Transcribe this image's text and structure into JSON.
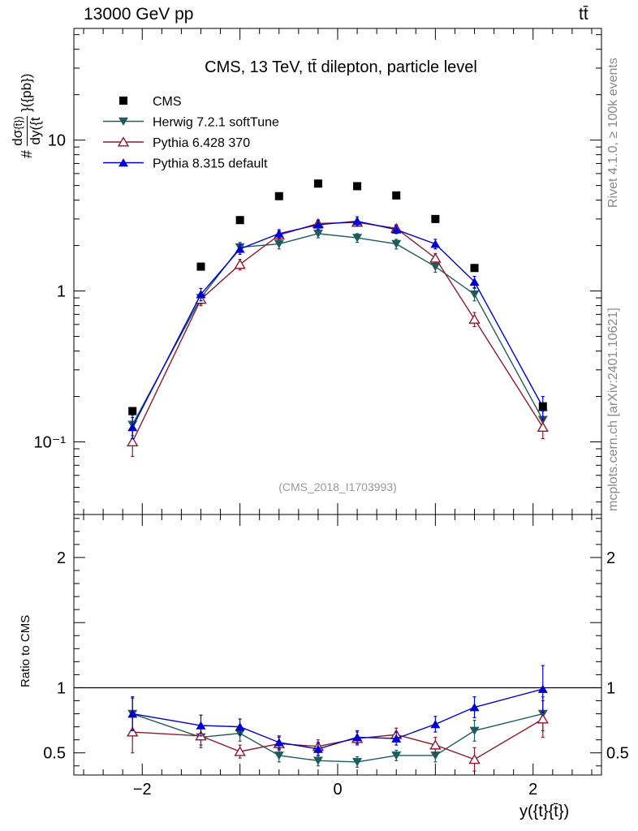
{
  "header": {
    "energy_label": "13000 GeV pp",
    "process_label": "tt̄"
  },
  "side_labels": {
    "rivet": "Rivet 4.1.0, ≥ 100k events",
    "mcplots": "mcplots.cern.ch [arXiv:2401.10621]"
  },
  "axis_labels": {
    "top_y_prefix": "#",
    "top_y_num": "dσ",
    "top_y_num_tail": "{t̄})",
    "top_y_den": "dy({t",
    "top_y_units": "}({pb})",
    "ratio_y": "Ratio to CMS",
    "x": "y({t}{t̄})"
  },
  "colors": {
    "data": "#000000",
    "herwig": "#1e5b5b",
    "pythia6": "#8b1a2e",
    "pythia8": "#0000cc"
  },
  "chart_data": [
    {
      "type": "scatter",
      "title": "CMS, 13 TeV, tt̄ dilepton, particle level",
      "watermark": "(CMS_2018_I1703993)",
      "yscale": "log",
      "ylim": [
        0.033,
        55
      ],
      "xlim": [
        -2.7,
        2.7
      ],
      "y_ticks": [
        {
          "value": 0.1,
          "label": "10⁻¹"
        },
        {
          "value": 1,
          "label": "1"
        },
        {
          "value": 10,
          "label": "10"
        }
      ],
      "legend_position": "top-left",
      "x": [
        -2.1,
        -1.4,
        -1.0,
        -0.6,
        -0.2,
        0.2,
        0.6,
        1.0,
        1.4,
        2.1
      ],
      "series": [
        {
          "name": "CMS",
          "key": "data",
          "marker": "square",
          "values": [
            0.16,
            1.45,
            2.95,
            4.25,
            5.15,
            4.95,
            4.3,
            3.0,
            1.42,
            0.172
          ],
          "errors": [
            0,
            0,
            0,
            0,
            0,
            0,
            0,
            0,
            0,
            0
          ]
        },
        {
          "name": "Herwig 7.2.1 softTune",
          "key": "herwig",
          "marker": "triangle-down",
          "values": [
            0.13,
            0.9,
            1.95,
            2.05,
            2.4,
            2.25,
            2.05,
            1.45,
            0.95,
            0.14
          ],
          "errors": [
            0.02,
            0.08,
            0.15,
            0.15,
            0.15,
            0.15,
            0.15,
            0.12,
            0.09,
            0.02
          ]
        },
        {
          "name": "Pythia 6.428 370",
          "key": "pythia6",
          "marker": "triangle-up-open",
          "values": [
            0.1,
            0.88,
            1.5,
            2.35,
            2.8,
            2.85,
            2.6,
            1.65,
            0.65,
            0.125
          ],
          "errors": [
            0.02,
            0.08,
            0.12,
            0.15,
            0.15,
            0.15,
            0.15,
            0.12,
            0.07,
            0.02
          ]
        },
        {
          "name": "Pythia 8.315 default",
          "key": "pythia8",
          "marker": "triangle-up",
          "values": [
            0.125,
            0.95,
            1.9,
            2.4,
            2.75,
            2.9,
            2.55,
            2.05,
            1.15,
            0.17
          ],
          "errors": [
            0.02,
            0.09,
            0.15,
            0.15,
            0.2,
            0.2,
            0.15,
            0.15,
            0.1,
            0.03
          ]
        }
      ]
    },
    {
      "type": "scatter",
      "title": "",
      "yscale": "linear",
      "ylim": [
        0.33,
        2.33
      ],
      "xlim": [
        -2.7,
        2.7
      ],
      "reference_line": 1,
      "y_ticks": [
        {
          "value": 0.5,
          "label": "0.5"
        },
        {
          "value": 1,
          "label": "1"
        },
        {
          "value": 2,
          "label": "2"
        }
      ],
      "x_ticks": [
        {
          "value": -2,
          "label": "−2"
        },
        {
          "value": 0,
          "label": "0"
        },
        {
          "value": 2,
          "label": "2"
        }
      ],
      "x": [
        -2.1,
        -1.4,
        -1.0,
        -0.6,
        -0.2,
        0.2,
        0.6,
        1.0,
        1.4,
        2.1
      ],
      "series": [
        {
          "name": "Herwig 7.2.1 softTune",
          "key": "herwig",
          "marker": "triangle-down",
          "values": [
            0.8,
            0.62,
            0.65,
            0.48,
            0.44,
            0.43,
            0.48,
            0.48,
            0.67,
            0.8
          ],
          "errors": [
            0.12,
            0.08,
            0.06,
            0.05,
            0.04,
            0.04,
            0.04,
            0.05,
            0.08,
            0.13
          ]
        },
        {
          "name": "Pythia 6.428 370",
          "key": "pythia6",
          "marker": "triangle-up-open",
          "values": [
            0.66,
            0.63,
            0.51,
            0.57,
            0.55,
            0.61,
            0.64,
            0.56,
            0.45,
            0.76
          ],
          "errors": [
            0.16,
            0.07,
            0.05,
            0.05,
            0.05,
            0.05,
            0.05,
            0.06,
            0.09,
            0.14
          ]
        },
        {
          "name": "Pythia 8.315 default",
          "key": "pythia8",
          "marker": "triangle-up",
          "values": [
            0.8,
            0.71,
            0.7,
            0.58,
            0.53,
            0.62,
            0.61,
            0.72,
            0.85,
            0.99
          ],
          "errors": [
            0.13,
            0.08,
            0.06,
            0.05,
            0.05,
            0.05,
            0.05,
            0.06,
            0.08,
            0.18
          ]
        }
      ]
    }
  ]
}
